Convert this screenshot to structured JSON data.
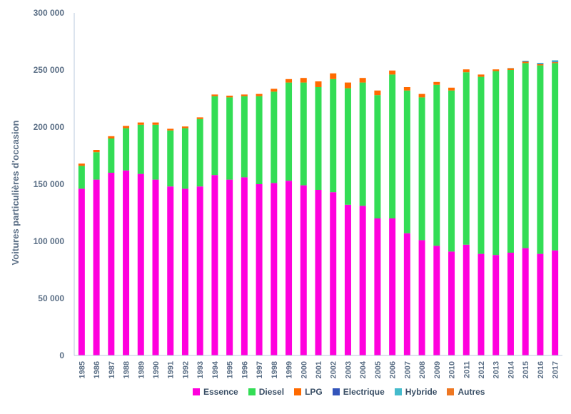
{
  "chart_data": {
    "type": "bar",
    "stacked": true,
    "ylabel": "Voitures particulières d'occasion",
    "xlabel": "",
    "ylim": [
      0,
      300000
    ],
    "yticks": [
      0,
      50000,
      100000,
      150000,
      200000,
      250000,
      300000
    ],
    "ytick_labels": [
      "0",
      "50 000",
      "100 000",
      "150 000",
      "200 000",
      "250 000",
      "300 000"
    ],
    "grid": false,
    "legend_position": "bottom",
    "categories": [
      "1985",
      "1986",
      "1987",
      "1988",
      "1989",
      "1990",
      "1991",
      "1992",
      "1993",
      "1994",
      "1995",
      "1996",
      "1997",
      "1998",
      "1999",
      "2000",
      "2001",
      "2002",
      "2003",
      "2004",
      "2005",
      "2006",
      "2007",
      "2008",
      "2009",
      "2010",
      "2011",
      "2012",
      "2013",
      "2014",
      "2015",
      "2016",
      "2017"
    ],
    "series": [
      {
        "name": "Essence",
        "color": "#ff00dd",
        "values": [
          146000,
          154000,
          160000,
          162000,
          159000,
          154000,
          148000,
          146000,
          148000,
          158000,
          154000,
          156000,
          150000,
          151000,
          153000,
          149000,
          145000,
          143000,
          132000,
          131000,
          120000,
          120000,
          107000,
          101000,
          96000,
          91000,
          97000,
          89000,
          88000,
          90000,
          94000,
          89000,
          92000
        ]
      },
      {
        "name": "Diesel",
        "color": "#33dd55",
        "values": [
          20000,
          24000,
          30000,
          37000,
          43000,
          48000,
          49000,
          53000,
          59000,
          69000,
          72000,
          71000,
          77000,
          80000,
          86000,
          90000,
          90000,
          99000,
          102000,
          108000,
          108000,
          126000,
          125000,
          125000,
          141000,
          141000,
          151000,
          155000,
          161000,
          160000,
          162000,
          165000,
          164000
        ]
      },
      {
        "name": "LPG",
        "color": "#ff6a00",
        "values": [
          2000,
          2000,
          2000,
          2000,
          2000,
          2000,
          1500,
          1500,
          1500,
          1500,
          1500,
          1500,
          2000,
          2500,
          3000,
          4000,
          5000,
          5000,
          5000,
          4000,
          4000,
          3500,
          3000,
          3000,
          2500,
          2500,
          2500,
          2000,
          1500,
          1500,
          1200,
          1000,
          800
        ]
      },
      {
        "name": "Electrique",
        "color": "#3355bb",
        "values": [
          0,
          0,
          0,
          0,
          0,
          0,
          0,
          0,
          0,
          0,
          0,
          0,
          0,
          0,
          0,
          0,
          0,
          0,
          0,
          0,
          0,
          0,
          0,
          0,
          0,
          0,
          0,
          0,
          0,
          0,
          300,
          400,
          500
        ]
      },
      {
        "name": "Hybride",
        "color": "#44bbcc",
        "values": [
          0,
          0,
          0,
          0,
          0,
          0,
          0,
          0,
          0,
          0,
          0,
          0,
          0,
          0,
          0,
          0,
          0,
          0,
          0,
          0,
          0,
          0,
          0,
          0,
          0,
          0,
          0,
          0,
          0,
          200,
          500,
          800,
          1200
        ]
      },
      {
        "name": "Autres",
        "color": "#ee7722",
        "values": [
          0,
          0,
          0,
          0,
          0,
          0,
          0,
          0,
          0,
          0,
          0,
          0,
          0,
          0,
          0,
          0,
          0,
          0,
          0,
          0,
          0,
          0,
          0,
          0,
          0,
          0,
          0,
          0,
          0,
          0,
          0,
          0,
          0
        ]
      }
    ]
  }
}
